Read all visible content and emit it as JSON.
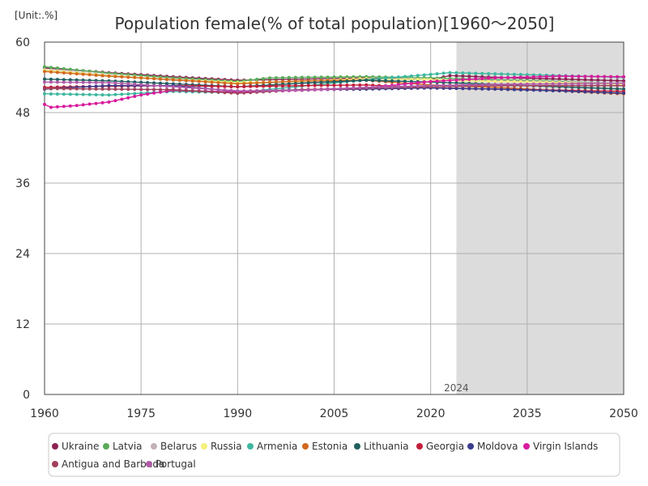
{
  "chart_data": {
    "type": "line",
    "title": "Population female(% of total population)[1960～2050]",
    "unit_label": "[Unit:.%]",
    "xlabel": "",
    "ylabel": "",
    "xlim": [
      1960,
      2050
    ],
    "ylim": [
      0,
      60
    ],
    "x_ticks": [
      1960,
      1975,
      1990,
      2005,
      2020,
      2035,
      2050
    ],
    "x_tick_labels": [
      "1960",
      "1975",
      "1990",
      "2005",
      "2020",
      "2035",
      "2050"
    ],
    "y_ticks": [
      0,
      12,
      24,
      36,
      48,
      60
    ],
    "y_tick_labels": [
      "0",
      "12",
      "24",
      "36",
      "48",
      "60"
    ],
    "forecast_start": 2024,
    "forecast_label": "2024",
    "grid": true,
    "legend_position": "bottom",
    "series": [
      {
        "name": "Ukraine",
        "color": "#8b2252",
        "points": [
          [
            1960,
            55.6
          ],
          [
            1970,
            54.8
          ],
          [
            1980,
            54.1
          ],
          [
            1990,
            53.5
          ],
          [
            2000,
            53.7
          ],
          [
            2010,
            53.9
          ],
          [
            2020,
            53.6
          ],
          [
            2023,
            54.3
          ],
          [
            2030,
            54.0
          ],
          [
            2040,
            53.7
          ],
          [
            2050,
            53.4
          ]
        ]
      },
      {
        "name": "Latvia",
        "color": "#5aaa5a",
        "points": [
          [
            1960,
            55.8
          ],
          [
            1970,
            54.7
          ],
          [
            1980,
            53.9
          ],
          [
            1990,
            53.3
          ],
          [
            1995,
            53.9
          ],
          [
            2000,
            54.0
          ],
          [
            2010,
            54.1
          ],
          [
            2020,
            53.9
          ],
          [
            2030,
            53.6
          ],
          [
            2040,
            53.3
          ],
          [
            2050,
            52.9
          ]
        ]
      },
      {
        "name": "Belarus",
        "color": "#c4b0b8",
        "points": [
          [
            1960,
            55.3
          ],
          [
            1970,
            54.4
          ],
          [
            1980,
            53.5
          ],
          [
            1990,
            53.0
          ],
          [
            2000,
            53.2
          ],
          [
            2010,
            53.7
          ],
          [
            2020,
            53.6
          ],
          [
            2030,
            53.4
          ],
          [
            2040,
            53.2
          ],
          [
            2050,
            52.9
          ]
        ]
      },
      {
        "name": "Russia",
        "color": "#f5f07a",
        "points": [
          [
            1960,
            55.2
          ],
          [
            1970,
            54.3
          ],
          [
            1980,
            53.6
          ],
          [
            1990,
            53.1
          ],
          [
            2000,
            53.3
          ],
          [
            2010,
            53.8
          ],
          [
            2020,
            53.6
          ],
          [
            2030,
            53.3
          ],
          [
            2040,
            53.1
          ],
          [
            2050,
            52.8
          ]
        ]
      },
      {
        "name": "Armenia",
        "color": "#3fb8a0",
        "points": [
          [
            1960,
            51.2
          ],
          [
            1970,
            51.0
          ],
          [
            1980,
            51.6
          ],
          [
            1990,
            51.4
          ],
          [
            2000,
            52.5
          ],
          [
            2010,
            53.6
          ],
          [
            2020,
            54.5
          ],
          [
            2023,
            54.8
          ],
          [
            2030,
            54.6
          ],
          [
            2040,
            54.3
          ],
          [
            2050,
            54.0
          ]
        ]
      },
      {
        "name": "Estonia",
        "color": "#d2691e",
        "points": [
          [
            1960,
            55.0
          ],
          [
            1970,
            54.2
          ],
          [
            1980,
            53.6
          ],
          [
            1990,
            52.9
          ],
          [
            2000,
            53.4
          ],
          [
            2010,
            53.5
          ],
          [
            2020,
            52.7
          ],
          [
            2030,
            52.3
          ],
          [
            2040,
            51.7
          ],
          [
            2050,
            51.2
          ]
        ]
      },
      {
        "name": "Lithuania",
        "color": "#1f5f5f",
        "points": [
          [
            1960,
            53.7
          ],
          [
            1970,
            53.4
          ],
          [
            1980,
            52.9
          ],
          [
            1990,
            52.4
          ],
          [
            2000,
            53.0
          ],
          [
            2010,
            53.5
          ],
          [
            2020,
            53.2
          ],
          [
            2030,
            52.8
          ],
          [
            2040,
            52.4
          ],
          [
            2050,
            52.0
          ]
        ]
      },
      {
        "name": "Georgia",
        "color": "#c41e3a",
        "points": [
          [
            1960,
            52.3
          ],
          [
            1970,
            52.5
          ],
          [
            1980,
            52.6
          ],
          [
            1990,
            52.4
          ],
          [
            2000,
            52.6
          ],
          [
            2010,
            52.7
          ],
          [
            2020,
            52.2
          ],
          [
            2030,
            52.0
          ],
          [
            2040,
            51.8
          ],
          [
            2050,
            51.6
          ]
        ]
      },
      {
        "name": "Moldova",
        "color": "#3c3c8c",
        "points": [
          [
            1960,
            52.0
          ],
          [
            1970,
            52.6
          ],
          [
            1980,
            52.6
          ],
          [
            1990,
            51.6
          ],
          [
            2000,
            51.9
          ],
          [
            2010,
            52.0
          ],
          [
            2020,
            52.2
          ],
          [
            2030,
            52.0
          ],
          [
            2040,
            51.7
          ],
          [
            2050,
            51.3
          ]
        ]
      },
      {
        "name": "Virgin Islands",
        "color": "#d81b9c",
        "points": [
          [
            1960,
            49.4
          ],
          [
            1961,
            48.9
          ],
          [
            1965,
            49.2
          ],
          [
            1970,
            49.8
          ],
          [
            1975,
            51.0
          ],
          [
            1980,
            51.8
          ],
          [
            1990,
            51.5
          ],
          [
            2000,
            51.8
          ],
          [
            2010,
            52.2
          ],
          [
            2020,
            53.3
          ],
          [
            2030,
            53.9
          ],
          [
            2040,
            54.2
          ],
          [
            2050,
            54.1
          ]
        ]
      },
      {
        "name": "Antigua and Barbuda",
        "color": "#a0405a",
        "points": [
          [
            1960,
            52.1
          ],
          [
            1970,
            52.0
          ],
          [
            1980,
            51.9
          ],
          [
            1990,
            51.3
          ],
          [
            2000,
            51.9
          ],
          [
            2010,
            52.2
          ],
          [
            2020,
            52.4
          ],
          [
            2030,
            52.6
          ],
          [
            2040,
            52.6
          ],
          [
            2050,
            52.6
          ]
        ]
      },
      {
        "name": "Portugal",
        "color": "#b05ba8",
        "points": [
          [
            1960,
            53.2
          ],
          [
            1970,
            53.1
          ],
          [
            1980,
            52.4
          ],
          [
            1990,
            51.7
          ],
          [
            2000,
            51.8
          ],
          [
            2010,
            52.3
          ],
          [
            2020,
            52.6
          ],
          [
            2030,
            52.8
          ],
          [
            2040,
            52.9
          ],
          [
            2050,
            53.0
          ]
        ]
      }
    ]
  }
}
